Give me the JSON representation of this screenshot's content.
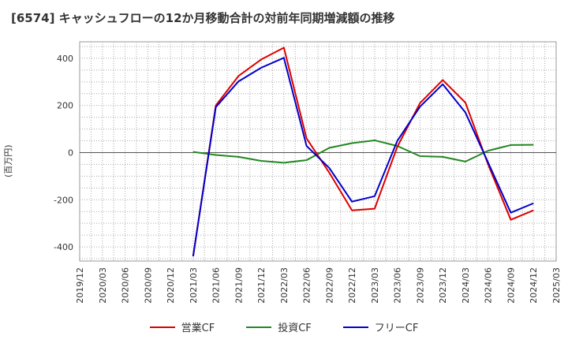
{
  "chart_data": {
    "type": "line",
    "title": "[6574]  キャッシュフローの12か月移動合計の対前年同期増減額の推移",
    "ylabel": "(百万円)",
    "xlabel": "",
    "ylim": [
      -460,
      470
    ],
    "yticks": [
      -400,
      -200,
      0,
      200,
      400
    ],
    "xticks": [
      "2019/12",
      "2020/03",
      "2020/06",
      "2020/09",
      "2020/12",
      "2021/03",
      "2021/06",
      "2021/09",
      "2021/12",
      "2022/03",
      "2022/06",
      "2022/09",
      "2022/12",
      "2023/03",
      "2023/06",
      "2023/09",
      "2023/12",
      "2024/03",
      "2024/06",
      "2024/09",
      "2024/12",
      "2025/03"
    ],
    "x": [
      "2021/03",
      "2021/06",
      "2021/09",
      "2021/12",
      "2022/03",
      "2022/06",
      "2022/09",
      "2022/12",
      "2023/03",
      "2023/06",
      "2023/09",
      "2023/12",
      "2024/03",
      "2024/06",
      "2024/09",
      "2024/12"
    ],
    "series": [
      {
        "name": "営業CF",
        "color": "#dd0000",
        "values": [
          -440,
          200,
          325,
          395,
          445,
          60,
          -85,
          -245,
          -238,
          25,
          210,
          308,
          212,
          -50,
          -285,
          -245
        ]
      },
      {
        "name": "投資CF",
        "color": "#228822",
        "values": [
          3,
          -10,
          -18,
          -35,
          -43,
          -32,
          20,
          40,
          52,
          28,
          -15,
          -18,
          -38,
          8,
          32,
          33
        ]
      },
      {
        "name": "フリーCF",
        "color": "#0000cc",
        "values": [
          -440,
          193,
          302,
          360,
          402,
          28,
          -65,
          -208,
          -185,
          50,
          195,
          290,
          170,
          -42,
          -255,
          -215
        ]
      }
    ],
    "grid": true,
    "legend_position": "bottom-center"
  }
}
